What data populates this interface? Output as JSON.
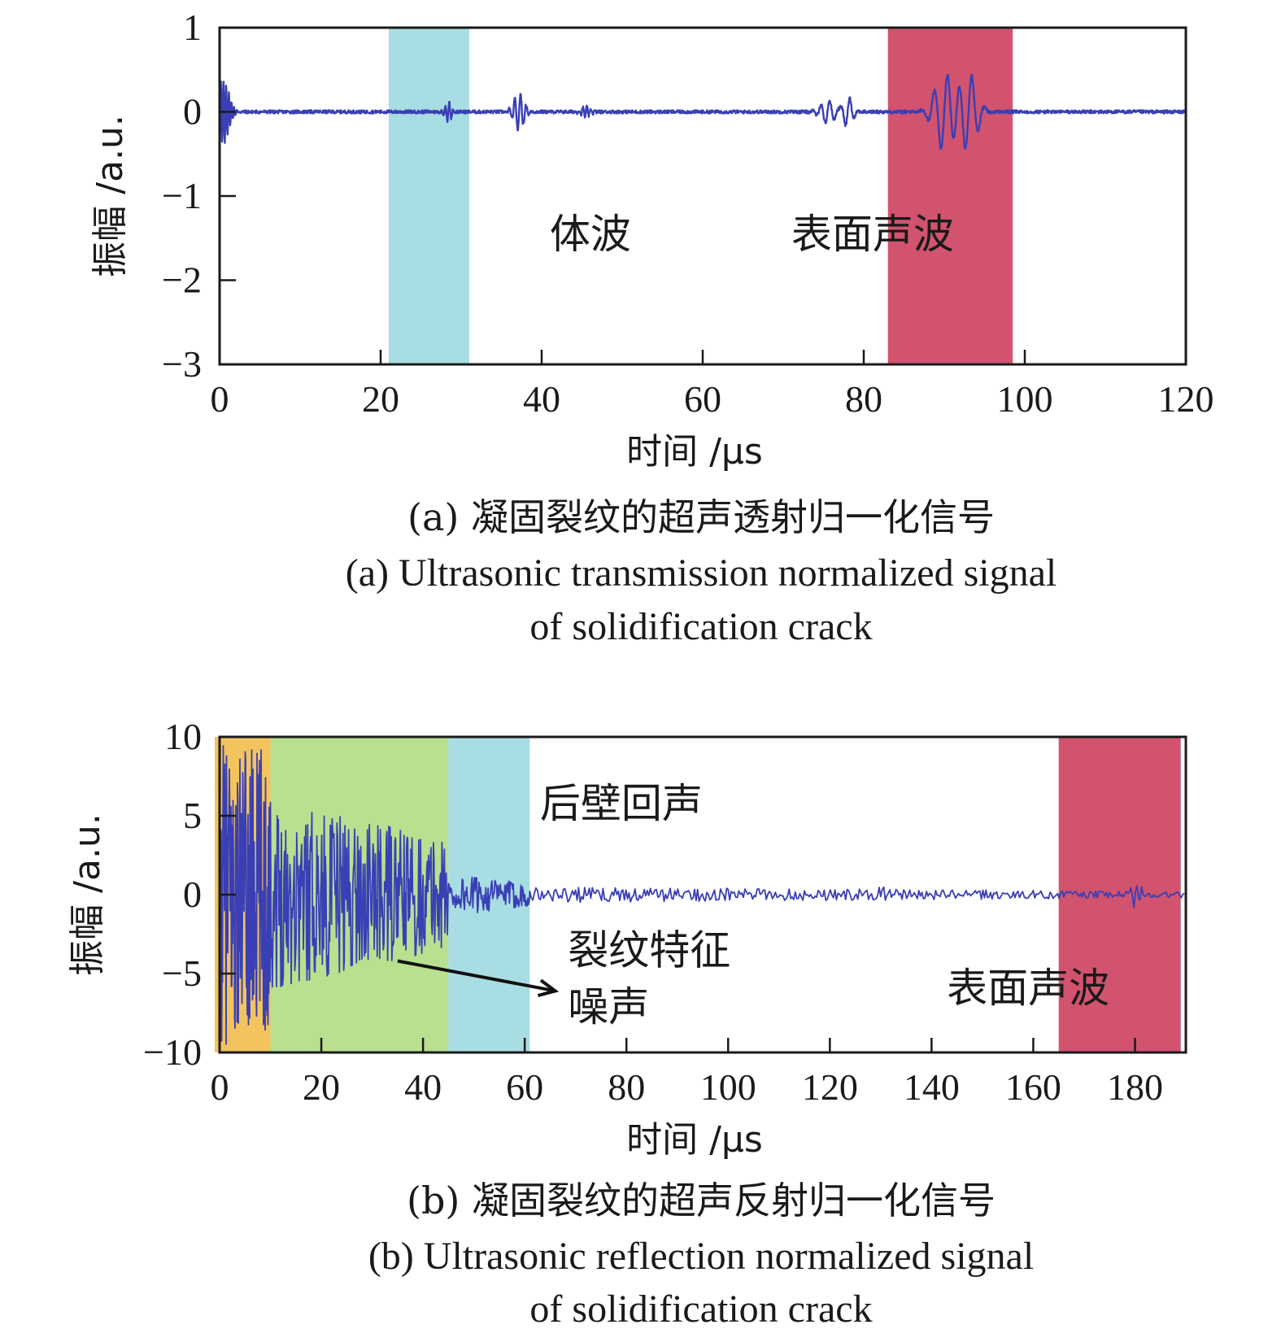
{
  "colors": {
    "signal": "#3a3fb5",
    "bulk_wave_band": "#a8dde3",
    "surface_wave_band": "#d2536e",
    "near_field_band": "#f3c45e",
    "crack_noise_band": "#b8e08f",
    "axis": "#1a1a1a"
  },
  "chart_data": [
    {
      "type": "line",
      "panel": "a",
      "xlabel": "时间 /μs",
      "ylabel": "振幅 /a.u.",
      "xlim": [
        0,
        120
      ],
      "ylim": [
        -3,
        1
      ],
      "xticks": [
        0,
        20,
        40,
        60,
        80,
        100,
        120
      ],
      "yticks": [
        1,
        0,
        -1,
        -2,
        -3
      ],
      "xtick_labels": [
        "0",
        "20",
        "40",
        "60",
        "80",
        "100",
        "120"
      ],
      "ytick_labels": [
        "1",
        "0",
        "−1",
        "−2",
        "−3"
      ],
      "bands": [
        {
          "x0": 21,
          "x1": 31,
          "color": "#a8dde3"
        },
        {
          "x0": 83,
          "x1": 98.5,
          "color": "#d2536e"
        }
      ],
      "annotations": [
        {
          "text": "体波",
          "x": 41,
          "y": -1.62
        },
        {
          "text": "表面声波",
          "x": 71,
          "y": -1.62
        }
      ],
      "signal_events": [
        {
          "t": 0.4,
          "amp": 0.38,
          "width": 1.0,
          "freq": 3.0
        },
        {
          "t": 28.4,
          "amp": 0.12,
          "width": 0.5,
          "freq": 2.0
        },
        {
          "t": 37.2,
          "amp": 0.22,
          "width": 0.9,
          "freq": 1.4
        },
        {
          "t": 45.5,
          "amp": 0.06,
          "width": 0.8,
          "freq": 2.0
        },
        {
          "t": 75.5,
          "amp": 0.14,
          "width": 1.2,
          "freq": 0.9
        },
        {
          "t": 78.0,
          "amp": 0.18,
          "width": 0.8,
          "freq": 0.9
        },
        {
          "t": 90.0,
          "amp": 0.46,
          "width": 1.6,
          "freq": 0.6
        },
        {
          "t": 93.0,
          "amp": 0.46,
          "width": 1.4,
          "freq": 0.6
        }
      ],
      "baseline_noise": 0.02,
      "caption_zh": "(a) 凝固裂纹的超声透射归一化信号",
      "caption_en_1": "(a) Ultrasonic transmission normalized signal",
      "caption_en_2": "of solidification crack"
    },
    {
      "type": "line",
      "panel": "b",
      "xlabel": "时间 /μs",
      "ylabel": "振幅 /a.u.",
      "xlim": [
        0,
        190
      ],
      "ylim": [
        -10,
        10
      ],
      "xticks": [
        0,
        20,
        40,
        60,
        80,
        100,
        120,
        140,
        160,
        180
      ],
      "yticks": [
        10,
        5,
        0,
        -5,
        -10
      ],
      "xtick_labels": [
        "0",
        "20",
        "40",
        "60",
        "80",
        "100",
        "120",
        "140",
        "160",
        "180"
      ],
      "ytick_labels": [
        "10",
        "5",
        "0",
        "−5",
        "−10"
      ],
      "bands": [
        {
          "x0": -1,
          "x1": 10,
          "color": "#f3c45e"
        },
        {
          "x0": 10,
          "x1": 45,
          "color": "#b8e08f"
        },
        {
          "x0": 45,
          "x1": 61,
          "color": "#a8dde3"
        },
        {
          "x0": 165,
          "x1": 189,
          "color": "#d2536e"
        }
      ],
      "annotations": [
        {
          "text": "后壁回声",
          "x": 63,
          "y": 4.9
        },
        {
          "text": "裂纹特征",
          "x": 68.5,
          "y": -4.4
        },
        {
          "text": "噪声",
          "x": 68.5,
          "y": -8.0
        },
        {
          "text": "表面声波",
          "x": 143,
          "y": -6.8
        }
      ],
      "arrow": {
        "from": [
          35,
          -4.2
        ],
        "to": [
          66,
          -6.1
        ]
      },
      "segments": [
        {
          "x0": 0,
          "x1": 10,
          "amp": 9.5,
          "step": 0.08
        },
        {
          "x0": 10,
          "x1": 45,
          "amp_start": 6.0,
          "amp_end": 3.5,
          "step": 0.12
        },
        {
          "x0": 45,
          "x1": 61,
          "amp_start": 1.4,
          "amp_end": 0.7,
          "step": 0.15
        },
        {
          "x0": 61,
          "x1": 190,
          "amp_start": 0.5,
          "amp_end": 0.2,
          "step": 0.3
        }
      ],
      "caption_zh": "(b) 凝固裂纹的超声反射归一化信号",
      "caption_en_1": "(b) Ultrasonic reflection normalized signal",
      "caption_en_2": "of solidification crack"
    }
  ]
}
